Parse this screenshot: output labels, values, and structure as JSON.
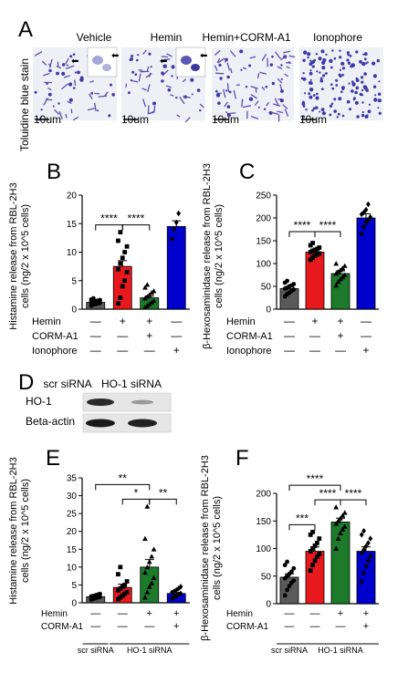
{
  "panelA": {
    "letter": "A",
    "ylabel": "Toluidine blue stain",
    "labels": [
      "Vehicle",
      "Hemin",
      "Hemin+CORM-A1",
      "Ionophore"
    ],
    "scale_label": "10um"
  },
  "panelD": {
    "letter": "D",
    "col_labels": [
      "scr siRNA",
      "HO-1 siRNA"
    ],
    "row_labels": [
      "HO-1",
      "Beta-actin"
    ]
  },
  "chart_data": [
    {
      "letter": "B",
      "type": "bar",
      "ylabel_lines": [
        "Histamine release from RBL-2H3",
        "cells (ng/2 x 10^5 cells)"
      ],
      "yticks": [
        0,
        5,
        10,
        15,
        20
      ],
      "ylim": [
        0,
        20
      ],
      "bar_colors": [
        "#5a5a5a",
        "#e8191c",
        "#1c7a2a",
        "#0000cc"
      ],
      "values": [
        1.2,
        7.5,
        2.0,
        14.5
      ],
      "errors": [
        0.15,
        1.0,
        0.3,
        1.0
      ],
      "points": [
        [
          0.6,
          0.8,
          0.9,
          1.0,
          1.1,
          1.2,
          1.3,
          1.4,
          1.5,
          1.6,
          1.7,
          1.9
        ],
        [
          1.0,
          2.0,
          4.0,
          5.0,
          6.5,
          7.0,
          8.0,
          9.0,
          10.0,
          11.0,
          12.0,
          13.5
        ],
        [
          0.3,
          0.6,
          0.9,
          1.2,
          1.5,
          1.9,
          2.2,
          2.5,
          2.9,
          3.2,
          3.8,
          4.3
        ],
        [
          12.3,
          14.0,
          15.2,
          16.8
        ]
      ],
      "markers": [
        "circle",
        "square",
        "triangle",
        "diamond"
      ],
      "treatments": [
        {
          "label": "Hemin",
          "marks": [
            "—",
            "+",
            "+",
            "—"
          ]
        },
        {
          "label": "CORM-A1",
          "marks": [
            "—",
            "—",
            "+",
            "—"
          ]
        },
        {
          "label": "Ionophore",
          "marks": [
            "—",
            "—",
            "—",
            "+"
          ]
        }
      ],
      "significance": [
        {
          "from": 0,
          "to": 1,
          "label": "****"
        },
        {
          "from": 1,
          "to": 2,
          "label": "****"
        }
      ]
    },
    {
      "letter": "C",
      "type": "bar",
      "ylabel_lines": [
        "β-Hexosaminidase release from RBL-2H3",
        "cells (ng/2 x 10^5 cells)"
      ],
      "yticks": [
        0,
        50,
        100,
        150,
        200,
        250
      ],
      "ylim": [
        0,
        250
      ],
      "bar_colors": [
        "#5a5a5a",
        "#e8191c",
        "#1c7a2a",
        "#0000cc"
      ],
      "values": [
        45,
        125,
        78,
        200
      ],
      "errors": [
        4,
        5,
        6,
        9
      ],
      "points": [
        [
          28,
          33,
          36,
          40,
          43,
          45,
          47,
          50,
          52,
          55,
          58,
          62
        ],
        [
          108,
          113,
          117,
          120,
          122,
          125,
          128,
          130,
          132,
          135,
          140,
          145
        ],
        [
          52,
          60,
          66,
          70,
          75,
          78,
          82,
          86,
          90,
          95,
          100
        ],
        [
          165,
          180,
          190,
          195,
          202,
          208,
          212,
          218,
          230
        ]
      ],
      "markers": [
        "circle",
        "square",
        "triangle",
        "diamond"
      ],
      "treatments": [
        {
          "label": "Hemin",
          "marks": [
            "—",
            "+",
            "+",
            "—"
          ]
        },
        {
          "label": "CORM-A1",
          "marks": [
            "—",
            "—",
            "+",
            "—"
          ]
        },
        {
          "label": "Ionophore",
          "marks": [
            "—",
            "—",
            "—",
            "+"
          ]
        }
      ],
      "significance": [
        {
          "from": 0,
          "to": 1,
          "label": "****"
        },
        {
          "from": 1,
          "to": 2,
          "label": "****"
        }
      ]
    },
    {
      "letter": "E",
      "type": "bar",
      "ylabel_lines": [
        "Histamine release from RBL-2H3",
        "cells (ng/2 x 10^5 cells)"
      ],
      "yticks": [
        0,
        5,
        10,
        15,
        20,
        25,
        30,
        35
      ],
      "ylim": [
        0,
        35
      ],
      "bar_colors": [
        "#5a5a5a",
        "#e8191c",
        "#1c7a2a",
        "#0000cc"
      ],
      "values": [
        1.7,
        4.3,
        10.0,
        2.6
      ],
      "errors": [
        0.2,
        0.9,
        2.1,
        0.3
      ],
      "points": [
        [
          0.9,
          1.1,
          1.3,
          1.5,
          1.6,
          1.8,
          1.9,
          2.1,
          2.3,
          2.5
        ],
        [
          1.0,
          1.5,
          2.0,
          2.5,
          3.0,
          3.5,
          4.0,
          4.5,
          5.0,
          6.0,
          8.0,
          10.0
        ],
        [
          1.5,
          3.0,
          4.5,
          5.5,
          7.0,
          8.5,
          10.0,
          11.5,
          13.0,
          15.0,
          18.0,
          27.0
        ],
        [
          1.2,
          1.6,
          2.0,
          2.3,
          2.6,
          2.9,
          3.2,
          3.6,
          4.0,
          4.5
        ]
      ],
      "markers": [
        "circle",
        "square",
        "triangle",
        "diamond"
      ],
      "treatments": [
        {
          "label": "Hemin",
          "marks": [
            "—",
            "—",
            "+",
            "+"
          ]
        },
        {
          "label": "CORM-A1",
          "marks": [
            "—",
            "—",
            "—",
            "+"
          ]
        }
      ],
      "group_labels": [
        {
          "text": "scr siRNA",
          "bars": [
            0
          ]
        },
        {
          "text": "HO-1 siRNA",
          "bars": [
            1,
            2,
            3
          ]
        }
      ],
      "significance": [
        {
          "from": 0,
          "to": 2,
          "label": "**"
        },
        {
          "from": 1,
          "to": 2,
          "label": "*"
        },
        {
          "from": 2,
          "to": 3,
          "label": "**"
        }
      ]
    },
    {
      "letter": "F",
      "type": "bar",
      "ylabel_lines": [
        "β-Hexosaminidase release from RBL-2H3",
        "cells (ng/2 x 10^5 cells)"
      ],
      "yticks": [
        0,
        50,
        100,
        150,
        200
      ],
      "ylim": [
        0,
        200
      ],
      "bar_colors": [
        "#5a5a5a",
        "#e8191c",
        "#1c7a2a",
        "#0000cc"
      ],
      "values": [
        48,
        95,
        148,
        95
      ],
      "errors": [
        6,
        8,
        7,
        8
      ],
      "points": [
        [
          15,
          25,
          32,
          38,
          42,
          46,
          50,
          54,
          58,
          64,
          70,
          76
        ],
        [
          60,
          70,
          78,
          85,
          90,
          95,
          100,
          105,
          110,
          118,
          125,
          130
        ],
        [
          100,
          118,
          128,
          135,
          140,
          145,
          150,
          155,
          160,
          165,
          175
        ],
        [
          40,
          55,
          68,
          78,
          86,
          92,
          98,
          104,
          110,
          118,
          125,
          132
        ]
      ],
      "markers": [
        "circle",
        "square",
        "triangle",
        "diamond"
      ],
      "treatments": [
        {
          "label": "Hemin",
          "marks": [
            "—",
            "—",
            "+",
            "+"
          ]
        },
        {
          "label": "CORM-A1",
          "marks": [
            "—",
            "—",
            "—",
            "+"
          ]
        }
      ],
      "group_labels": [
        {
          "text": "scr siRNA",
          "bars": [
            0
          ]
        },
        {
          "text": "HO-1 siRNA",
          "bars": [
            1,
            2,
            3
          ]
        }
      ],
      "significance": [
        {
          "from": 0,
          "to": 1,
          "label": "***"
        },
        {
          "from": 1,
          "to": 2,
          "label": "****"
        },
        {
          "from": 0,
          "to": 2,
          "label": "****"
        },
        {
          "from": 2,
          "to": 3,
          "label": "****"
        }
      ]
    }
  ]
}
